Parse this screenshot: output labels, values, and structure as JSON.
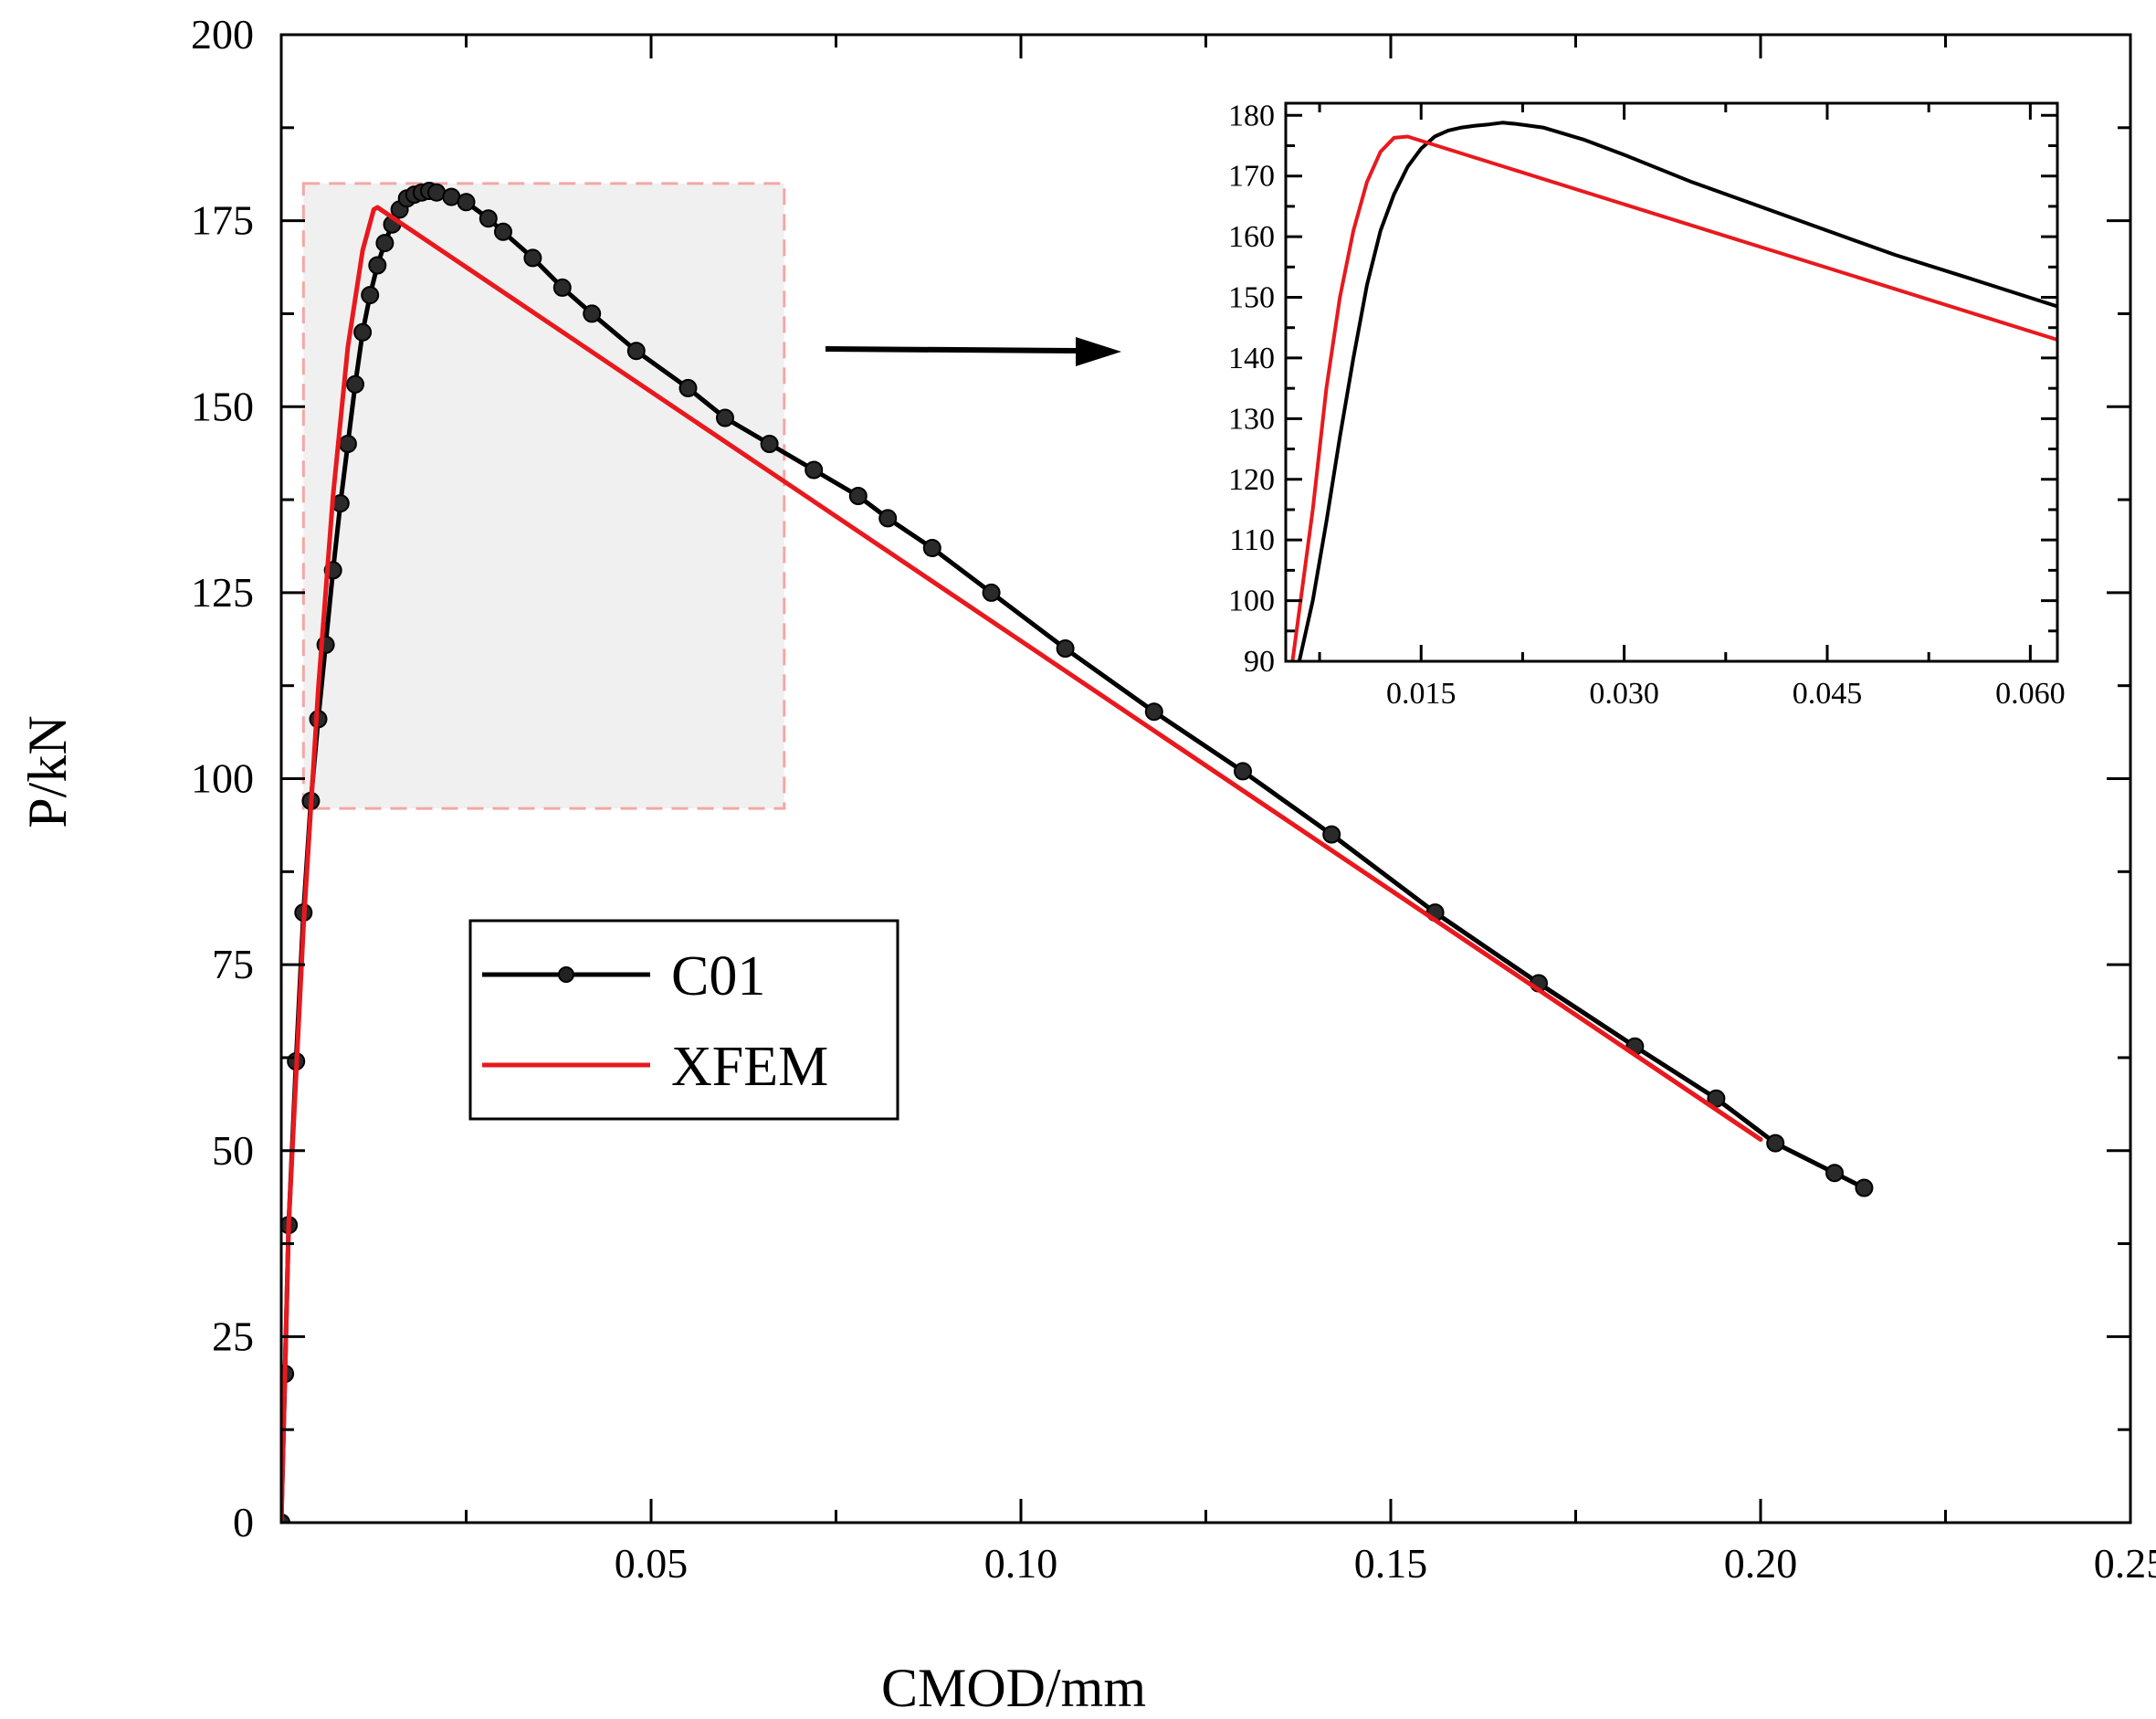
{
  "chart_data": [
    {
      "id": "main",
      "type": "line",
      "xlabel": "CMOD/mm",
      "ylabel": "P/kN",
      "xlim": [
        0,
        0.25
      ],
      "ylim": [
        0,
        200
      ],
      "xticks": [
        0.05,
        0.1,
        0.15,
        0.2,
        0.25
      ],
      "xtick_labels": [
        "0.05",
        "0.10",
        "0.15",
        "0.20",
        "0.25"
      ],
      "yticks": [
        0,
        25,
        50,
        75,
        100,
        125,
        150,
        175,
        200
      ],
      "ytick_labels": [
        "0",
        "25",
        "50",
        "75",
        "100",
        "125",
        "150",
        "175",
        "200"
      ],
      "grid": false,
      "legend_position": "center-left",
      "series": [
        {
          "name": "C01",
          "color": "#000000",
          "marker": "circle",
          "x": [
            0.0,
            0.0005,
            0.001,
            0.002,
            0.003,
            0.004,
            0.005,
            0.006,
            0.007,
            0.008,
            0.009,
            0.01,
            0.011,
            0.012,
            0.013,
            0.014,
            0.015,
            0.016,
            0.017,
            0.018,
            0.019,
            0.02,
            0.021,
            0.023,
            0.025,
            0.028,
            0.03,
            0.034,
            0.038,
            0.042,
            0.048,
            0.055,
            0.06,
            0.066,
            0.072,
            0.078,
            0.082,
            0.088,
            0.096,
            0.106,
            0.118,
            0.13,
            0.142,
            0.156,
            0.17,
            0.183,
            0.194,
            0.202,
            0.21,
            0.214
          ],
          "y": [
            0,
            20,
            40,
            62,
            82,
            97,
            108,
            118,
            128,
            137,
            145,
            153,
            160,
            165,
            169,
            172,
            174.5,
            176.5,
            178,
            178.5,
            178.8,
            179,
            178.8,
            178.2,
            177.5,
            175.3,
            173.5,
            170,
            166,
            162.5,
            157.5,
            152.5,
            148.5,
            145,
            141.5,
            138,
            135,
            131,
            125,
            117.5,
            109,
            101,
            92.5,
            82,
            72.5,
            64,
            57,
            51,
            47,
            45
          ]
        },
        {
          "name": "XFEM",
          "color": "#e8191e",
          "marker": "none",
          "x": [
            0.0,
            0.001,
            0.003,
            0.005,
            0.007,
            0.009,
            0.011,
            0.0125,
            0.013,
            0.2
          ],
          "y": [
            0,
            40,
            80,
            112,
            138,
            158,
            171,
            176.5,
            176.8,
            51.5
          ]
        }
      ],
      "annotation": {
        "type": "highlight-rect",
        "xrange": [
          0.003,
          0.068
        ],
        "yrange": [
          96,
          180
        ],
        "fill": "#f0f0f0",
        "stroke": "#f4a6a6"
      }
    },
    {
      "id": "inset",
      "type": "line",
      "xlabel": "",
      "ylabel": "",
      "xlim": [
        0.005,
        0.062
      ],
      "ylim": [
        90,
        182
      ],
      "xticks": [
        0.015,
        0.03,
        0.045,
        0.06
      ],
      "xtick_labels": [
        "0.015",
        "0.030",
        "0.045",
        "0.060"
      ],
      "yticks": [
        90,
        100,
        110,
        120,
        130,
        140,
        150,
        160,
        170,
        180
      ],
      "ytick_labels": [
        "90",
        "100",
        "110",
        "120",
        "130",
        "140",
        "150",
        "160",
        "170",
        "180"
      ],
      "grid": false,
      "series": [
        {
          "name": "C01",
          "color": "#000000",
          "marker": "none",
          "x": [
            0.006,
            0.007,
            0.008,
            0.009,
            0.01,
            0.011,
            0.012,
            0.013,
            0.014,
            0.015,
            0.016,
            0.017,
            0.018,
            0.019,
            0.02,
            0.021,
            0.022,
            0.024,
            0.027,
            0.03,
            0.035,
            0.04,
            0.045,
            0.05,
            0.055,
            0.062
          ],
          "y": [
            90,
            100,
            113,
            127,
            140,
            152,
            161,
            167,
            171.5,
            174.5,
            176.5,
            177.5,
            178,
            178.3,
            178.5,
            178.8,
            178.6,
            178,
            176,
            173.5,
            169,
            165,
            161,
            157,
            153.5,
            148.5
          ]
        },
        {
          "name": "XFEM",
          "color": "#e8191e",
          "marker": "none",
          "x": [
            0.0055,
            0.007,
            0.008,
            0.009,
            0.01,
            0.011,
            0.012,
            0.013,
            0.014,
            0.062
          ],
          "y": [
            90,
            115,
            135,
            150,
            161,
            169,
            174,
            176.3,
            176.5,
            143
          ]
        }
      ]
    }
  ],
  "legend": {
    "items": [
      {
        "label": "C01",
        "color": "#000000",
        "marker": "circle"
      },
      {
        "label": "XFEM",
        "color": "#e8191e",
        "marker": "none"
      }
    ]
  },
  "arrow": {
    "direction": "right",
    "color": "#000000"
  }
}
